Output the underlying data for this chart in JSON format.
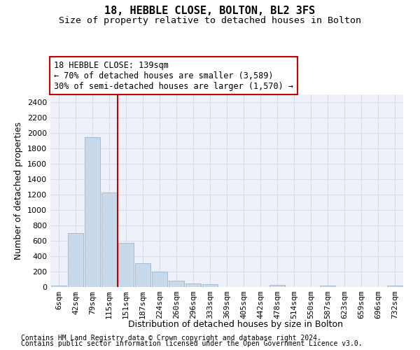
{
  "title_line1": "18, HEBBLE CLOSE, BOLTON, BL2 3FS",
  "title_line2": "Size of property relative to detached houses in Bolton",
  "xlabel": "Distribution of detached houses by size in Bolton",
  "ylabel": "Number of detached properties",
  "footnote1": "Contains HM Land Registry data © Crown copyright and database right 2024.",
  "footnote2": "Contains public sector information licensed under the Open Government Licence v3.0.",
  "annotation_line1": "18 HEBBLE CLOSE: 139sqm",
  "annotation_line2": "← 70% of detached houses are smaller (3,589)",
  "annotation_line3": "30% of semi-detached houses are larger (1,570) →",
  "bar_color": "#c8d9ec",
  "bar_edge_color": "#9ab5d4",
  "vline_color": "#cc0000",
  "vline_x": 3.5,
  "categories": [
    "6sqm",
    "42sqm",
    "79sqm",
    "115sqm",
    "151sqm",
    "187sqm",
    "224sqm",
    "260sqm",
    "296sqm",
    "333sqm",
    "369sqm",
    "405sqm",
    "442sqm",
    "478sqm",
    "514sqm",
    "550sqm",
    "587sqm",
    "623sqm",
    "659sqm",
    "696sqm",
    "732sqm"
  ],
  "values": [
    18,
    700,
    1950,
    1230,
    570,
    305,
    200,
    80,
    45,
    38,
    0,
    0,
    0,
    28,
    0,
    0,
    22,
    0,
    0,
    0,
    18
  ],
  "ylim": [
    0,
    2500
  ],
  "yticks": [
    0,
    200,
    400,
    600,
    800,
    1000,
    1200,
    1400,
    1600,
    1800,
    2000,
    2200,
    2400
  ],
  "background_color": "#ffffff",
  "plot_bg_color": "#eef2f8",
  "grid_color": "#d8dde8",
  "title_fontsize": 11,
  "subtitle_fontsize": 9.5,
  "axis_label_fontsize": 9,
  "tick_fontsize": 8,
  "annotation_fontsize": 8.5,
  "footnote_fontsize": 7
}
